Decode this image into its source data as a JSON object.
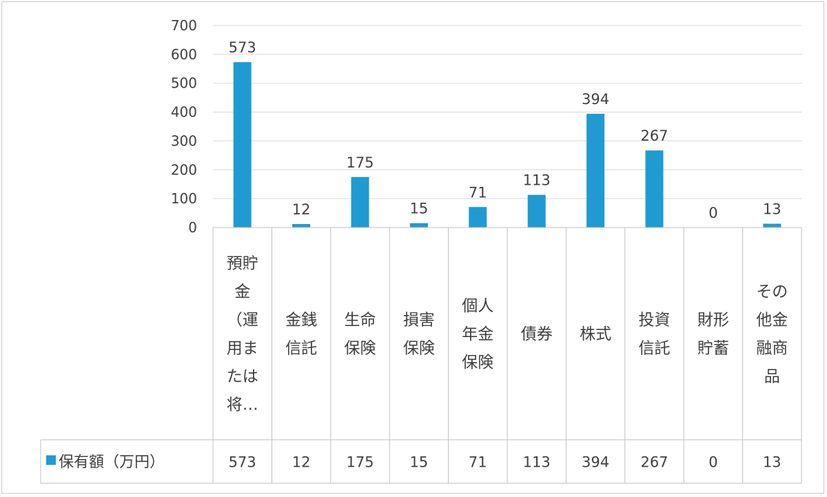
{
  "chart_data": {
    "type": "bar",
    "categories": [
      "預貯金（運用または将…",
      "金銭信託",
      "生命保険",
      "損害保険",
      "個人年金保険",
      "債券",
      "株式",
      "投資信託",
      "財形貯蓄",
      "その他金融商品"
    ],
    "category_lines": [
      [
        "預貯",
        "金",
        "（運",
        "用ま",
        "たは",
        "将…"
      ],
      [
        "金銭",
        "信託"
      ],
      [
        "生命",
        "保険"
      ],
      [
        "損害",
        "保険"
      ],
      [
        "個人",
        "年金",
        "保険"
      ],
      [
        "債券"
      ],
      [
        "株式"
      ],
      [
        "投資",
        "信託"
      ],
      [
        "財形",
        "貯蓄"
      ],
      [
        "その",
        "他金",
        "融商",
        "品"
      ]
    ],
    "series": [
      {
        "name": "保有額（万円）",
        "values": [
          573,
          12,
          175,
          15,
          71,
          113,
          394,
          267,
          0,
          13
        ],
        "color": "#1f9bd1"
      }
    ],
    "ylim": [
      0,
      700
    ],
    "yticks": [
      "0",
      "100",
      "200",
      "300",
      "400",
      "500",
      "600",
      "700"
    ],
    "grid": true,
    "data_labels": true,
    "data_table": true,
    "legend": "data-table"
  }
}
